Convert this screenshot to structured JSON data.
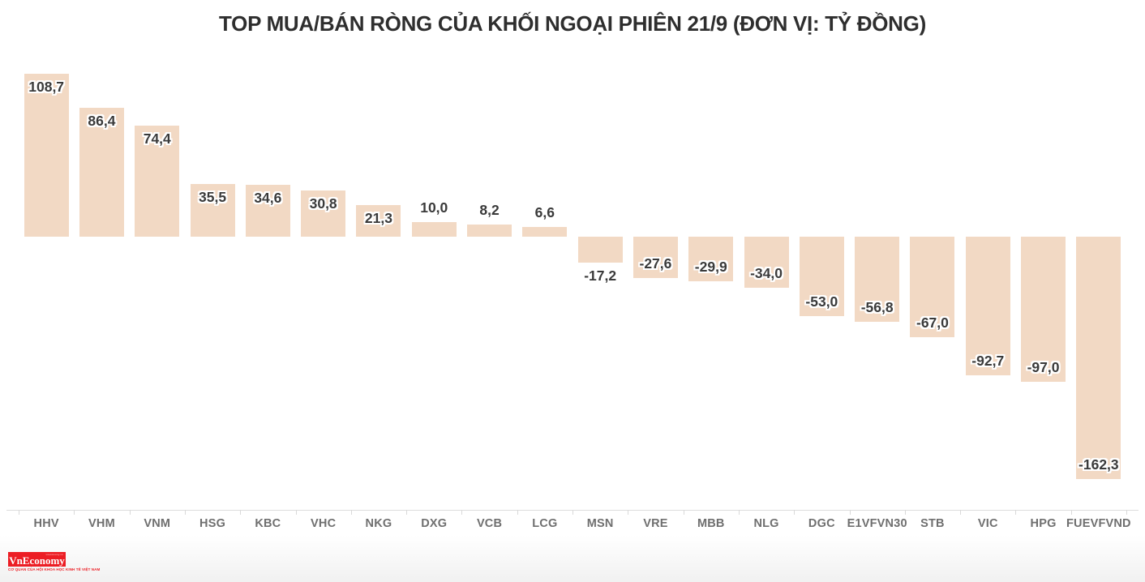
{
  "title": "TOP MUA/BÁN RÒNG CỦA KHỐI NGOẠI PHIÊN 21/9 (ĐƠN VỊ: TỶ ĐỒNG)",
  "chart_data": {
    "type": "bar",
    "title": "TOP MUA/BÁN RÒNG CỦA KHỐI NGOẠI PHIÊN 21/9 (ĐƠN VỊ: TỶ ĐỒNG)",
    "unit": "tỷ đồng",
    "categories": [
      "HHV",
      "VHM",
      "VNM",
      "HSG",
      "KBC",
      "VHC",
      "NKG",
      "DXG",
      "VCB",
      "LCG",
      "MSN",
      "VRE",
      "MBB",
      "NLG",
      "DGC",
      "E1VFVN30",
      "STB",
      "VIC",
      "HPG",
      "FUEVFVND"
    ],
    "values": [
      108.7,
      86.4,
      74.4,
      35.5,
      34.6,
      30.8,
      21.3,
      10.0,
      8.2,
      6.6,
      -17.2,
      -27.6,
      -29.9,
      -34.0,
      -53.0,
      -56.8,
      -67.0,
      -92.7,
      -97.0,
      -162.3
    ],
    "value_labels": [
      "108,7",
      "86,4",
      "74,4",
      "35,5",
      "34,6",
      "30,8",
      "21,3",
      "10,0",
      "8,2",
      "6,6",
      "-17,2",
      "-27,6",
      "-29,9",
      "-34,0",
      "-53,0",
      "-56,8",
      "-67,0",
      "-92,7",
      "-97,0",
      "-162,3"
    ],
    "xlabel": "",
    "ylabel": "",
    "ylim": [
      -175,
      120
    ],
    "grid": false,
    "legend": false,
    "bar_color": "#f2d9c4",
    "value_label_color": "#3a3a3a",
    "axis_line_color": "#dcdcdc",
    "x_tick_label_color": "#6f6f6f",
    "title_color": "#2e2e2e"
  },
  "branding": {
    "logo_text": "VnEconomy",
    "logo_url_small": "vneconomy.vn",
    "logo_bg_color": "#ec1d24",
    "tagline": "CƠ QUAN CỦA HỘI KHOA HỌC KINH TẾ VIỆT NAM"
  }
}
